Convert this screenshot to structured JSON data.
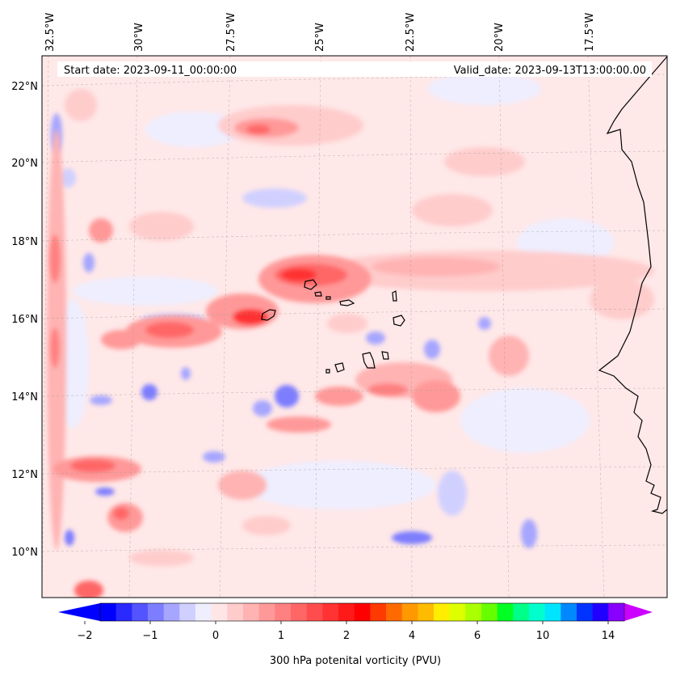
{
  "map": {
    "start_date": "Start date: 2023-09-11_00:00:00",
    "valid_date": "Valid_date: 2023-09-13T13:00:00.00",
    "lon_labels": [
      "32.5°W",
      "30°W",
      "27.5°W",
      "25°W",
      "22.5°W",
      "20°W",
      "17.5°W"
    ],
    "lat_labels": [
      "22°N",
      "20°N",
      "18°N",
      "16°N",
      "14°N",
      "12°N",
      "10°N"
    ]
  },
  "colorbar": {
    "label": "300 hPa potenital vorticity (PVU)",
    "tick_labels": [
      "−2",
      "−1",
      "0",
      "1",
      "2",
      "4",
      "6",
      "10",
      "14"
    ],
    "colors": [
      "#0000ff",
      "#2a2aff",
      "#5353ff",
      "#7d7dff",
      "#a6a6ff",
      "#d0d0ff",
      "#eeeeff",
      "#ffe6e6",
      "#ffcccc",
      "#ffb3b3",
      "#ff9999",
      "#ff8080",
      "#ff6666",
      "#ff4d4d",
      "#ff3333",
      "#ff1a1a",
      "#ff0000",
      "#ff3a00",
      "#ff6a00",
      "#ff9900",
      "#ffbb00",
      "#ffee00",
      "#ddff00",
      "#aaff00",
      "#66ff00",
      "#00ff22",
      "#00ff88",
      "#00ffcc",
      "#00e5ff",
      "#0088ff",
      "#0033ff",
      "#2200ff",
      "#8800ff"
    ],
    "extend_low_color": "#0000ff",
    "extend_high_color": "#cc00ff"
  }
}
